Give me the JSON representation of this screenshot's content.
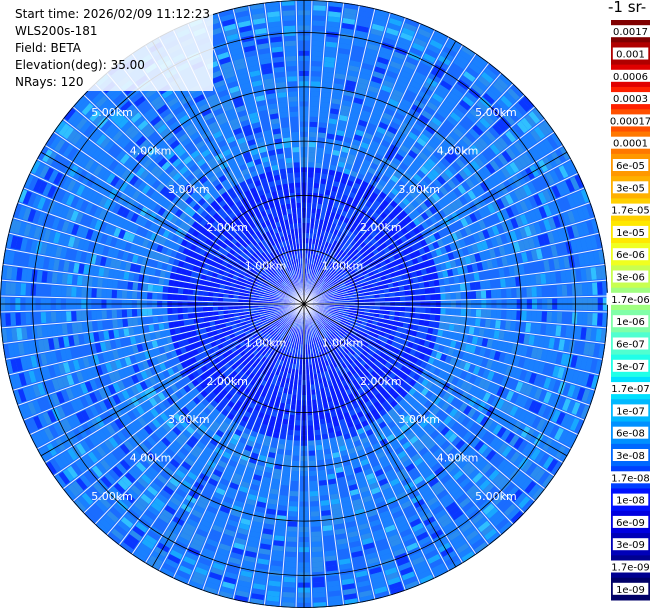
{
  "info": {
    "start_time": "Start time: 2026/02/09 11:12:23",
    "instrument": "WLS200s-181",
    "field": "Field: BETA",
    "elevation": "Elevation(deg): 35.00",
    "nrays": "NRays: 120"
  },
  "colorbar": {
    "units_fragment": "-1 sr-",
    "labels": [
      "0.0017",
      "0.001",
      "0.0006",
      "0.0003",
      "0.00017",
      "0.0001",
      "6e-05",
      "3e-05",
      "1.7e-05",
      "1e-05",
      "6e-06",
      "3e-06",
      "1.7e-06",
      "1e-06",
      "6e-07",
      "3e-07",
      "1.7e-07",
      "1e-07",
      "6e-08",
      "3e-08",
      "1.7e-08",
      "1e-08",
      "6e-09",
      "3e-09",
      "1.7e-09",
      "1e-09"
    ],
    "colors": [
      "#800000",
      "#b00000",
      "#e00000",
      "#ff2000",
      "#ff5000",
      "#ff7800",
      "#ff9800",
      "#ffb000",
      "#ffd000",
      "#ffe800",
      "#f0ff20",
      "#c8ff50",
      "#a0ff80",
      "#80ffa8",
      "#50ffd0",
      "#20ffe8",
      "#00e0ff",
      "#00b8ff",
      "#0090ff",
      "#0068ff",
      "#0040ff",
      "#0010ff",
      "#0000e0",
      "#0000b8",
      "#000090",
      "#000068"
    ]
  },
  "chart_data": {
    "type": "heatmap",
    "projection": "polar-ppi",
    "field": "BETA",
    "elevation_deg": 35.0,
    "n_rays": 120,
    "range_rings_km": [
      1,
      2,
      3,
      4,
      5
    ],
    "ring_labels": [
      "1.00km",
      "2.00km",
      "3.00km",
      "4.00km",
      "5.00km"
    ],
    "max_range_km": 5.6,
    "grid": true,
    "color_scale": "log",
    "value_range": [
      1e-09,
      0.0017
    ],
    "dominant_value_range": [
      1.7e-08,
      1e-07
    ]
  }
}
